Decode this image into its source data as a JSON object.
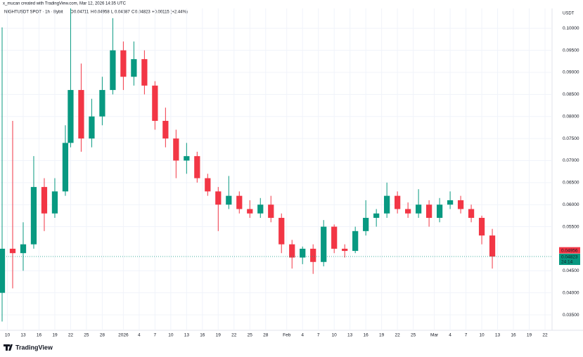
{
  "chart_data": {
    "type": "candlestick",
    "credit": "x_mucan created with TradingView.com, Mar 12, 2026 14:35 UTC",
    "title": "NIGHTUSDT SPOT · 1h · Bybit",
    "ohlc_header": [
      {
        "label": "O",
        "value": 0.04711
      },
      {
        "label": "H",
        "value": 0.04958
      },
      {
        "label": "L",
        "value": 0.04687
      },
      {
        "label": "C",
        "value": 0.04823
      }
    ],
    "change": "+0.00115 (+2.44%)",
    "currency": "USDT",
    "brand": "TradingView",
    "x": [
      "12-09",
      "12-11",
      "12-13",
      "12-15",
      "12-17",
      "12-19",
      "12-21",
      "12-22",
      "12-24",
      "12-26",
      "12-28",
      "12-30",
      "01-01",
      "01-03",
      "01-05",
      "01-07",
      "01-09",
      "01-11",
      "01-13",
      "01-15",
      "01-17",
      "01-19",
      "01-21",
      "01-23",
      "01-25",
      "01-27",
      "01-29",
      "01-31",
      "02-02",
      "02-04",
      "02-06",
      "02-08",
      "02-10",
      "02-12",
      "02-14",
      "02-16",
      "02-18",
      "02-20",
      "02-22",
      "02-24",
      "02-26",
      "02-28",
      "03-02",
      "03-04",
      "03-06",
      "03-08",
      "03-10",
      "03-12"
    ],
    "open": [
      0.04,
      0.05,
      0.049,
      0.051,
      0.064,
      0.058,
      0.063,
      0.074,
      0.086,
      0.075,
      0.08,
      0.086,
      0.095,
      0.089,
      0.093,
      0.087,
      0.079,
      0.075,
      0.07,
      0.071,
      0.066,
      0.063,
      0.06,
      0.062,
      0.059,
      0.058,
      0.06,
      0.057,
      0.051,
      0.048,
      0.05,
      0.047,
      0.055,
      0.05,
      0.0495,
      0.054,
      0.057,
      0.058,
      0.062,
      0.059,
      0.058,
      0.06,
      0.057,
      0.06,
      0.061,
      0.059,
      0.057,
      0.053
    ],
    "high": [
      0.1002,
      0.079,
      0.056,
      0.071,
      0.066,
      0.066,
      0.078,
      0.1045,
      0.092,
      0.084,
      0.089,
      0.1023,
      0.097,
      0.097,
      0.095,
      0.088,
      0.082,
      0.077,
      0.074,
      0.072,
      0.067,
      0.064,
      0.0665,
      0.063,
      0.061,
      0.0615,
      0.062,
      0.058,
      0.052,
      0.0505,
      0.051,
      0.0565,
      0.0555,
      0.051,
      0.055,
      0.061,
      0.059,
      0.065,
      0.063,
      0.0605,
      0.0635,
      0.061,
      0.0615,
      0.063,
      0.062,
      0.06,
      0.0575,
      0.0545
    ],
    "low": [
      0.0335,
      0.041,
      0.045,
      0.05,
      0.054,
      0.057,
      0.062,
      0.073,
      0.072,
      0.073,
      0.078,
      0.085,
      0.086,
      0.087,
      0.085,
      0.077,
      0.073,
      0.066,
      0.067,
      0.065,
      0.062,
      0.054,
      0.059,
      0.058,
      0.057,
      0.057,
      0.056,
      0.049,
      0.0455,
      0.0465,
      0.0443,
      0.046,
      0.049,
      0.048,
      0.049,
      0.053,
      0.055,
      0.057,
      0.058,
      0.057,
      0.057,
      0.055,
      0.056,
      0.059,
      0.058,
      0.056,
      0.051,
      0.0455
    ],
    "close": [
      0.05,
      0.049,
      0.051,
      0.064,
      0.058,
      0.063,
      0.074,
      0.086,
      0.075,
      0.08,
      0.086,
      0.095,
      0.089,
      0.093,
      0.087,
      0.079,
      0.075,
      0.07,
      0.071,
      0.066,
      0.063,
      0.06,
      0.062,
      0.059,
      0.058,
      0.06,
      0.057,
      0.051,
      0.048,
      0.05,
      0.047,
      0.055,
      0.05,
      0.0495,
      0.054,
      0.057,
      0.058,
      0.062,
      0.059,
      0.058,
      0.06,
      0.057,
      0.06,
      0.061,
      0.059,
      0.057,
      0.053,
      0.04823
    ],
    "up_color": "#089981",
    "down_color": "#f23645",
    "xlim": [
      "12-09",
      "03-22"
    ],
    "xticks": [
      {
        "value": "12-10",
        "label": "10"
      },
      {
        "value": "12-13",
        "label": "13"
      },
      {
        "value": "12-16",
        "label": "16"
      },
      {
        "value": "12-19",
        "label": "19"
      },
      {
        "value": "12-22",
        "label": "22"
      },
      {
        "value": "12-25",
        "label": "25"
      },
      {
        "value": "12-28",
        "label": "28"
      },
      {
        "value": "01-01",
        "label": "2026"
      },
      {
        "value": "01-04",
        "label": "4"
      },
      {
        "value": "01-07",
        "label": "7"
      },
      {
        "value": "01-10",
        "label": "10"
      },
      {
        "value": "01-13",
        "label": "13"
      },
      {
        "value": "01-16",
        "label": "16"
      },
      {
        "value": "01-19",
        "label": "19"
      },
      {
        "value": "01-22",
        "label": "22"
      },
      {
        "value": "01-25",
        "label": "25"
      },
      {
        "value": "01-28",
        "label": "28"
      },
      {
        "value": "02-01",
        "label": "Feb"
      },
      {
        "value": "02-04",
        "label": "4"
      },
      {
        "value": "02-07",
        "label": "7"
      },
      {
        "value": "02-10",
        "label": "10"
      },
      {
        "value": "02-13",
        "label": "13"
      },
      {
        "value": "02-16",
        "label": "16"
      },
      {
        "value": "02-19",
        "label": "19"
      },
      {
        "value": "02-22",
        "label": "22"
      },
      {
        "value": "02-25",
        "label": "25"
      },
      {
        "value": "03-01",
        "label": "Mar"
      },
      {
        "value": "03-04",
        "label": "4"
      },
      {
        "value": "03-07",
        "label": "7"
      },
      {
        "value": "03-10",
        "label": "10"
      },
      {
        "value": "03-13",
        "label": "13"
      },
      {
        "value": "03-16",
        "label": "16"
      },
      {
        "value": "03-19",
        "label": "19"
      },
      {
        "value": "03-22",
        "label": "22"
      }
    ],
    "ylim": [
      0.0315,
      0.1045
    ],
    "yticks": [
      {
        "value": 0.035,
        "label": "0.03500"
      },
      {
        "value": 0.04,
        "label": "0.04000"
      },
      {
        "value": 0.045,
        "label": "0.04500"
      },
      {
        "value": 0.055,
        "label": "0.05500"
      },
      {
        "value": 0.06,
        "label": "0.06000"
      },
      {
        "value": 0.065,
        "label": "0.06500"
      },
      {
        "value": 0.07,
        "label": "0.07000"
      },
      {
        "value": 0.075,
        "label": "0.07500"
      },
      {
        "value": 0.08,
        "label": "0.08000"
      },
      {
        "value": 0.085,
        "label": "0.08500"
      },
      {
        "value": 0.09,
        "label": "0.09000"
      },
      {
        "value": 0.095,
        "label": "0.09500"
      },
      {
        "value": 0.1,
        "label": "0.10000"
      }
    ],
    "grid": true,
    "marker_price": 0.04956,
    "last_price": 0.04823,
    "countdown": "24:14"
  }
}
